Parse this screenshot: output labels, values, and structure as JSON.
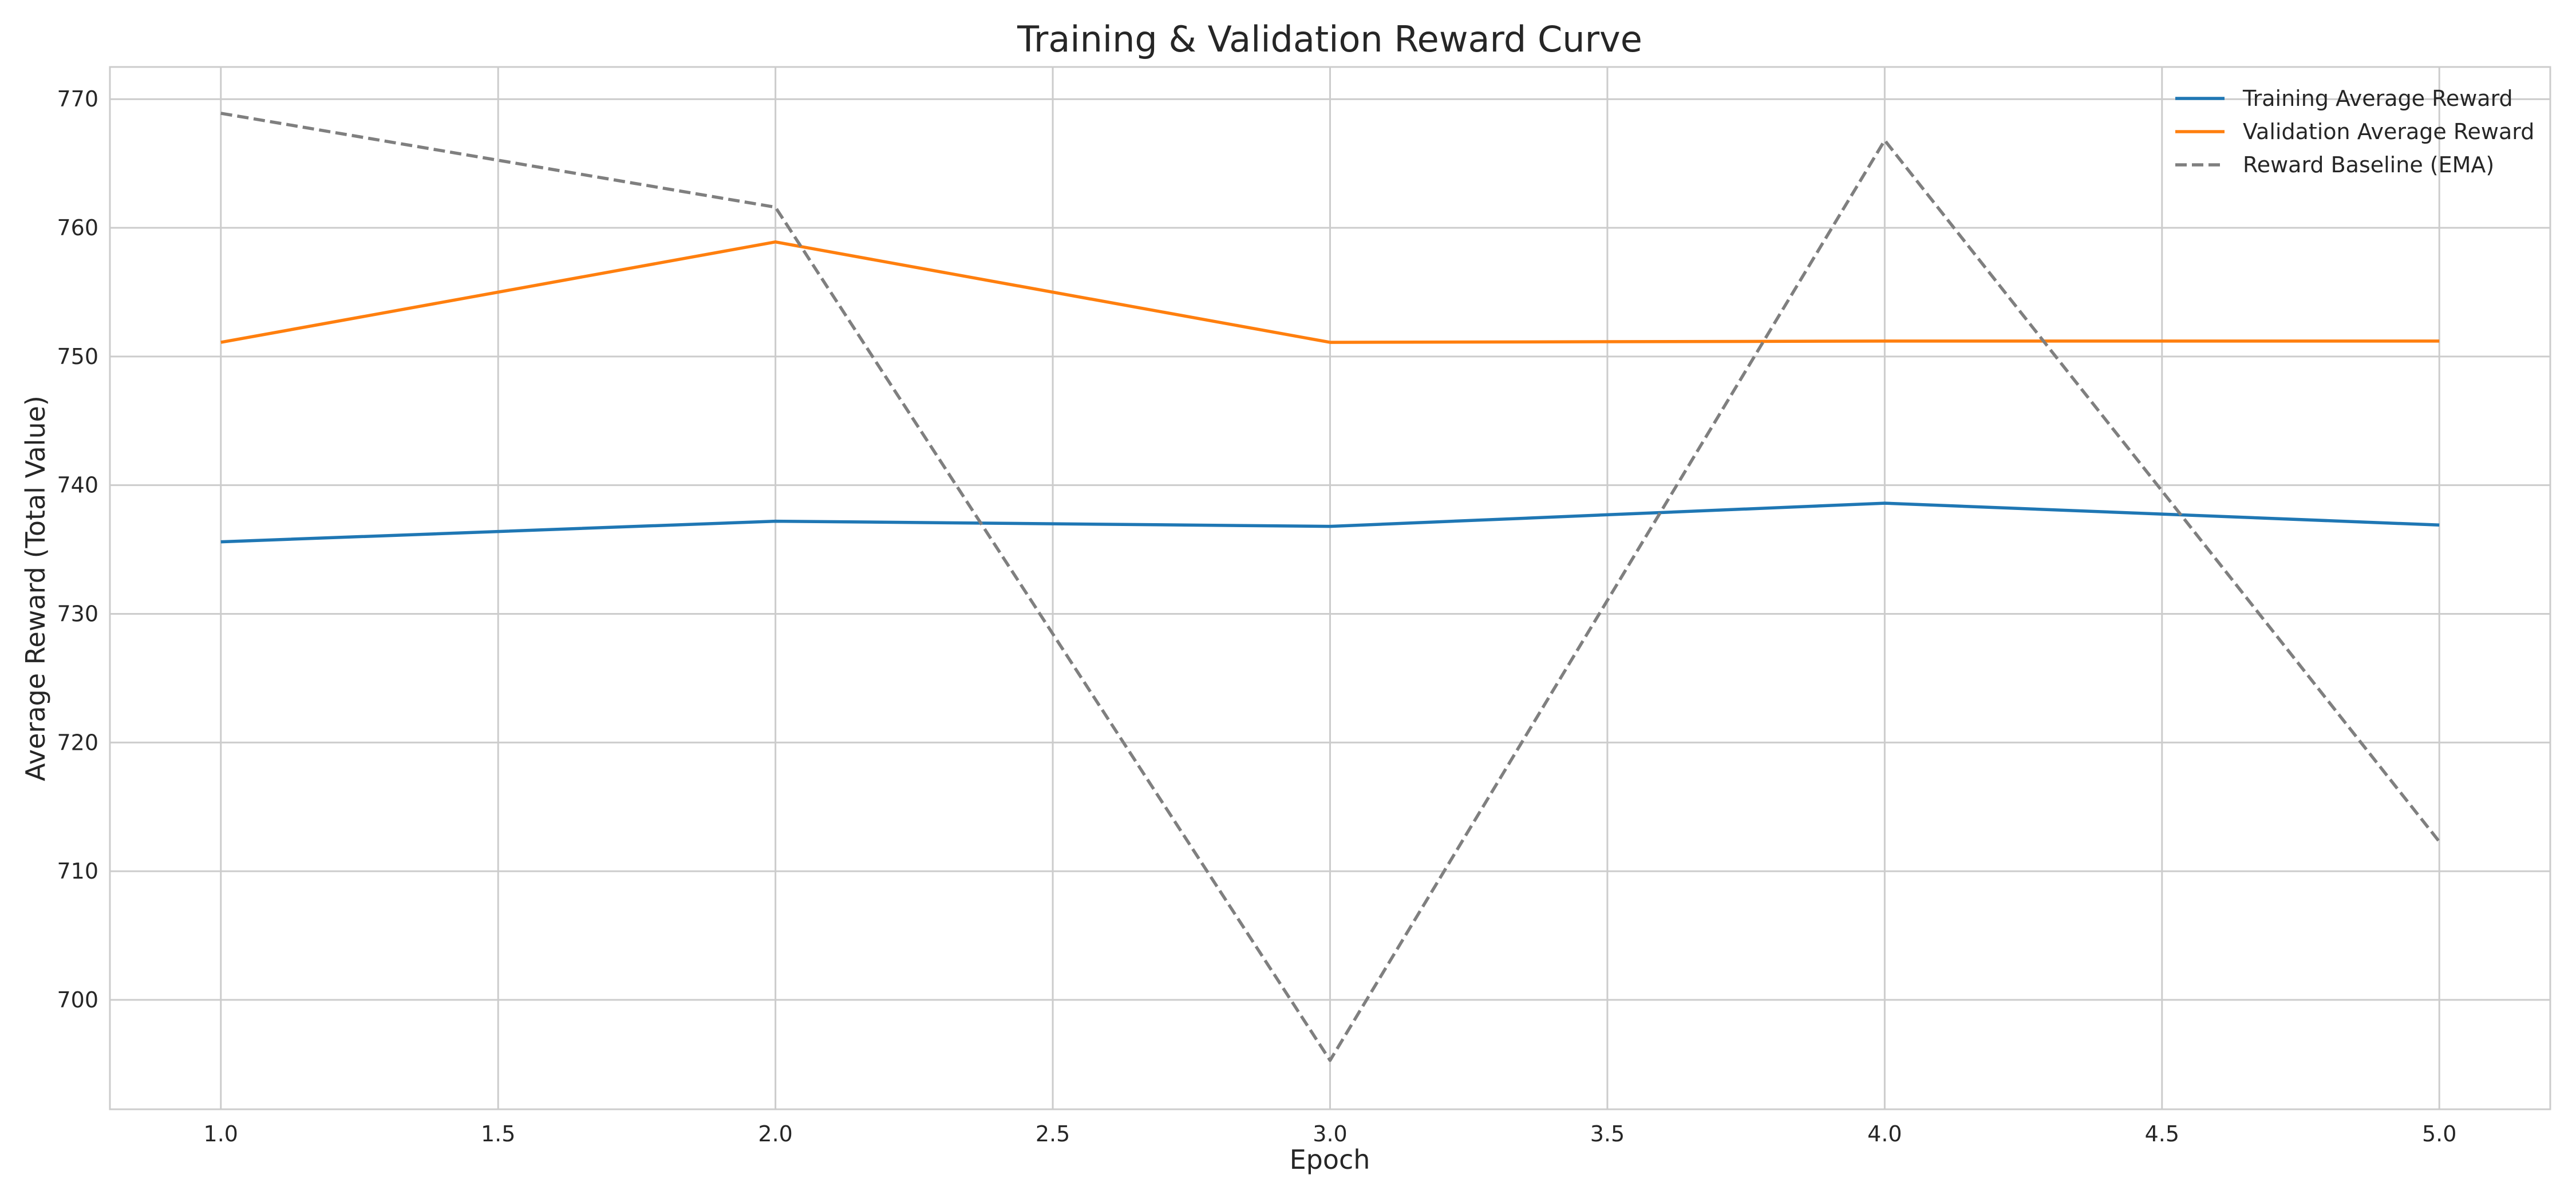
{
  "chart_data": {
    "type": "line",
    "title": "Training & Validation Reward Curve",
    "xlabel": "Epoch",
    "ylabel": "Average Reward (Total Value)",
    "xlim": [
      0.8,
      5.2
    ],
    "ylim": [
      691.5,
      772.5
    ],
    "x_ticks": [
      "1.0",
      "1.5",
      "2.0",
      "2.5",
      "3.0",
      "3.5",
      "4.0",
      "4.5",
      "5.0"
    ],
    "y_ticks": [
      "700",
      "710",
      "720",
      "730",
      "740",
      "750",
      "760",
      "770"
    ],
    "grid": true,
    "legend_position": "top-right",
    "x": [
      1,
      2,
      3,
      4,
      5
    ],
    "series": [
      {
        "name": "Training Average Reward",
        "values": [
          735.6,
          737.2,
          736.8,
          738.6,
          736.9
        ],
        "color": "#1f77b4",
        "linestyle": "solid"
      },
      {
        "name": "Validation Average Reward",
        "values": [
          751.1,
          758.9,
          751.1,
          751.2,
          751.2
        ],
        "color": "#ff7f0e",
        "linestyle": "solid"
      },
      {
        "name": "Reward Baseline (EMA)",
        "values": [
          768.9,
          761.6,
          695.3,
          766.8,
          712.3
        ],
        "color": "#7f7f7f",
        "linestyle": "dashed"
      }
    ]
  }
}
